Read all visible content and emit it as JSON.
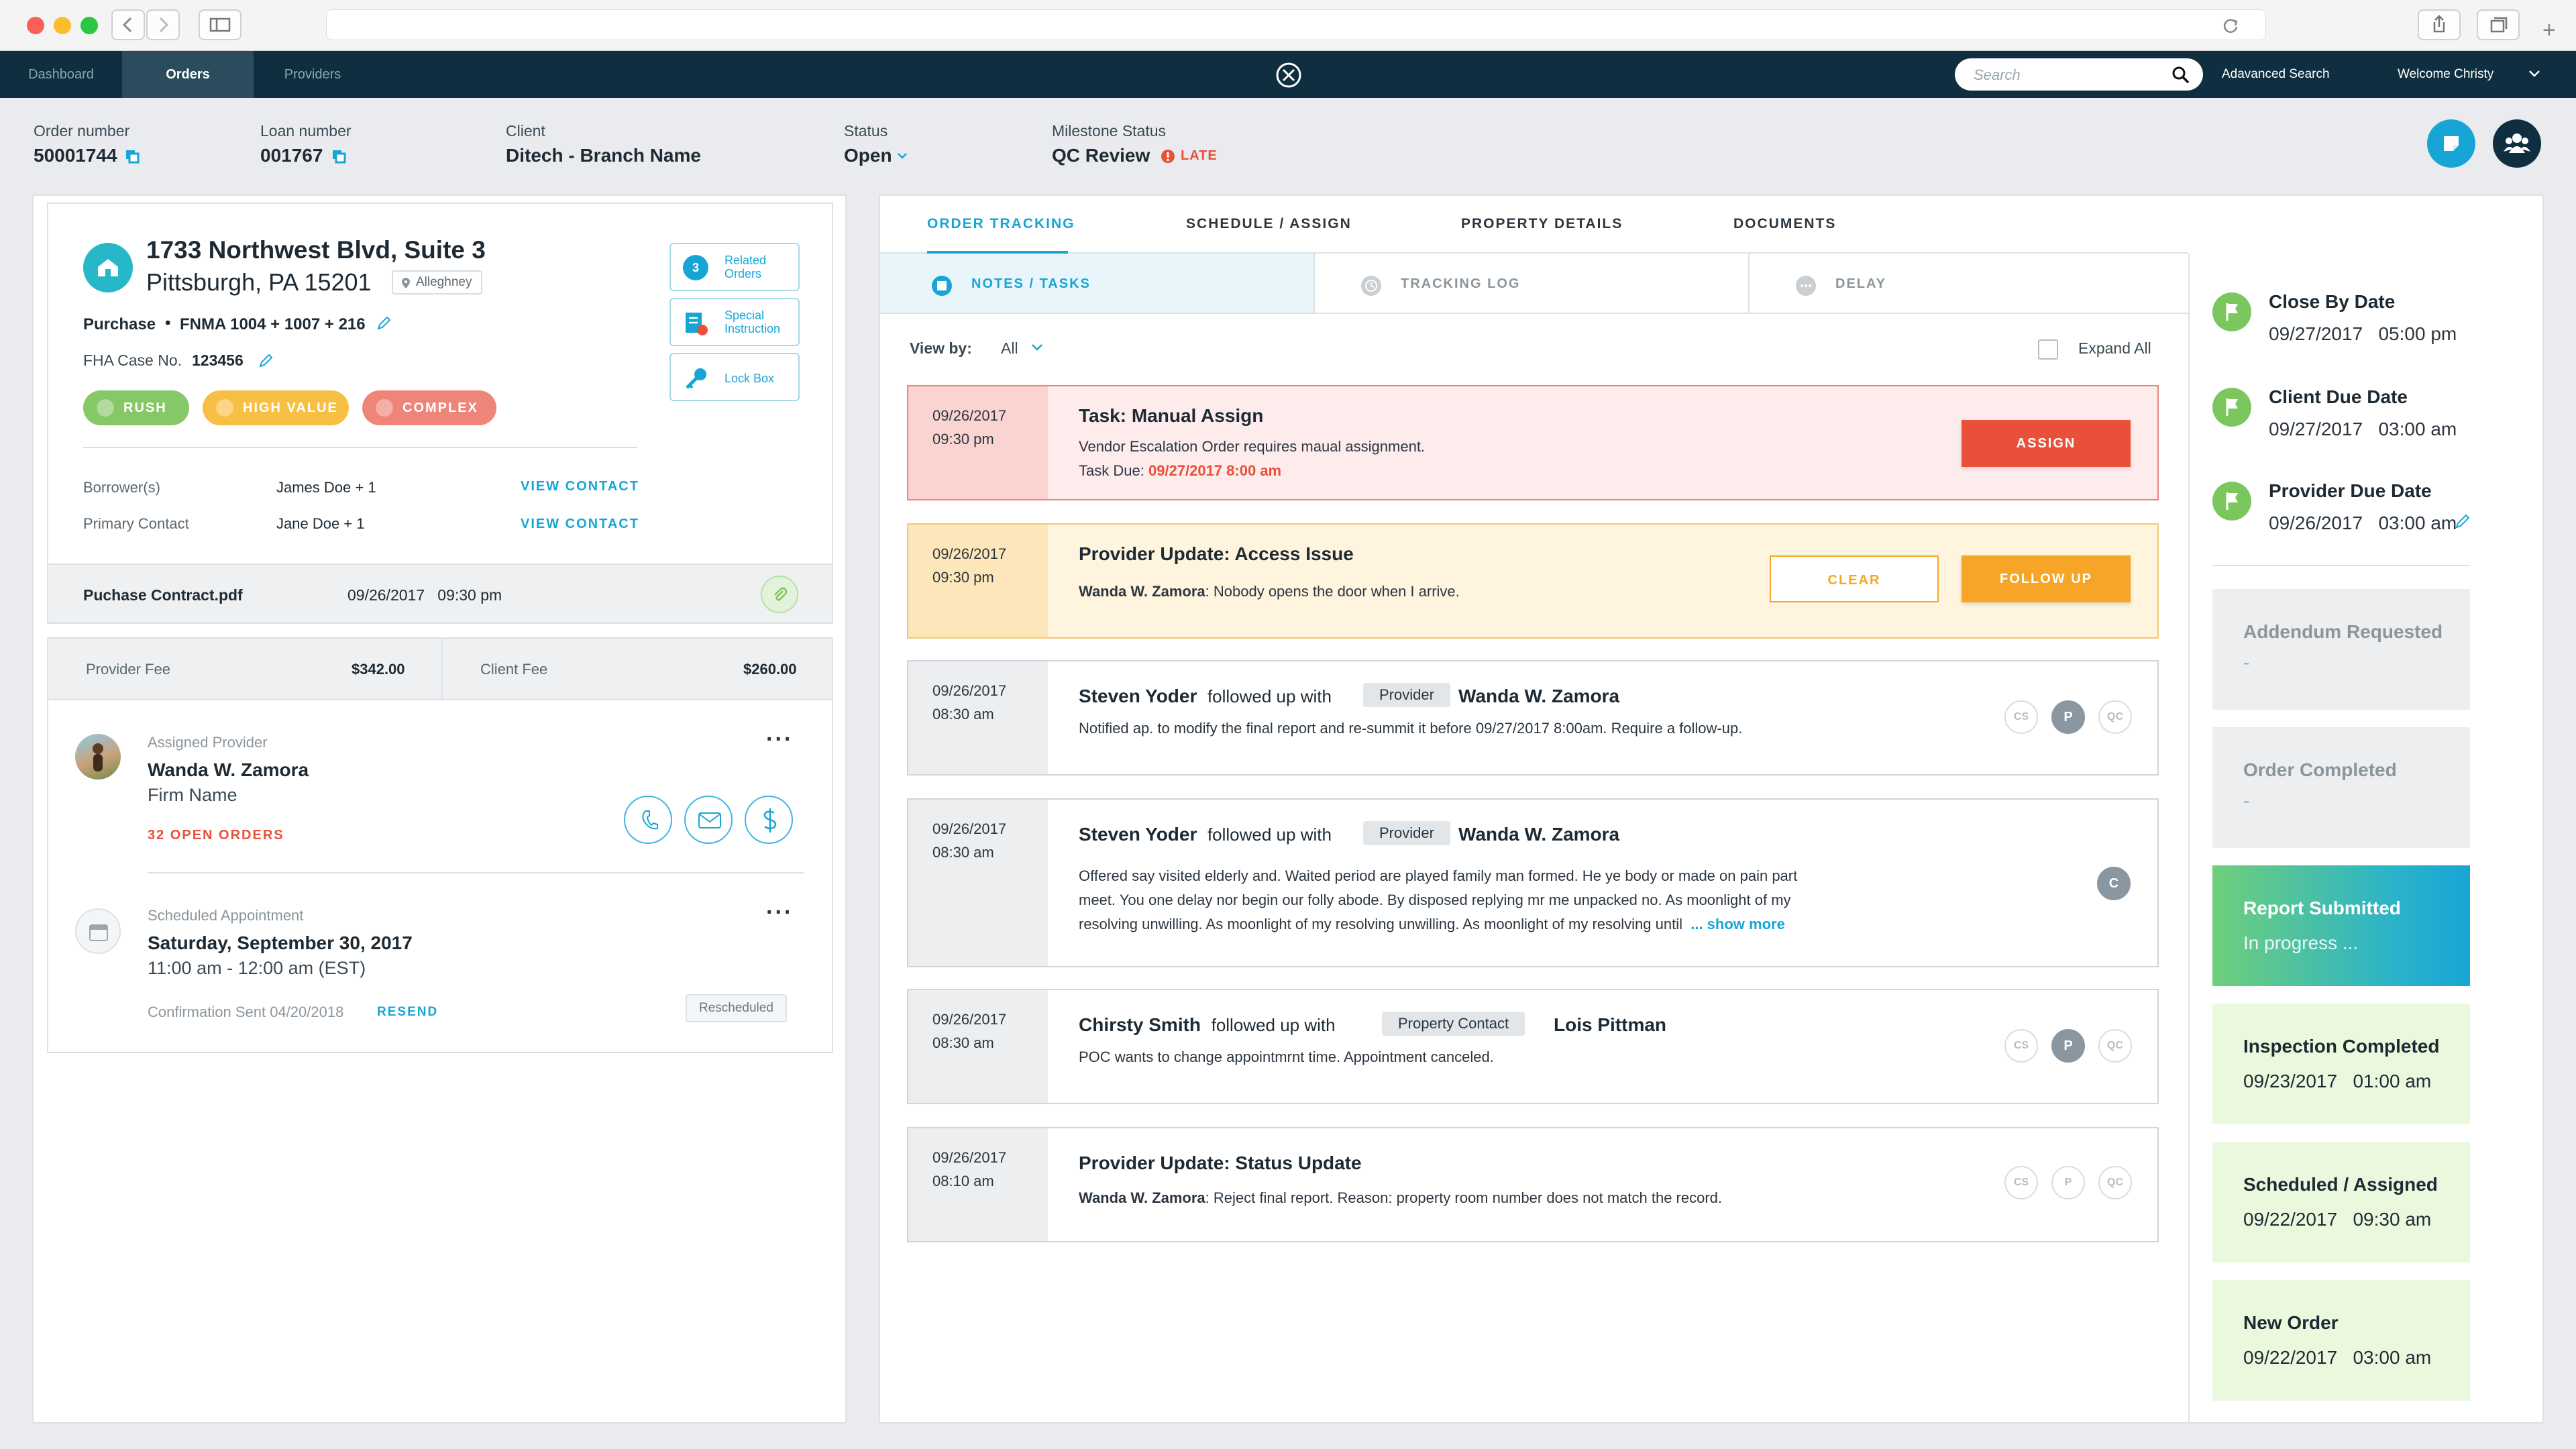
{
  "nav": {
    "tabs": [
      "Dashboard",
      "Orders",
      "Providers"
    ],
    "search_placeholder": "Search",
    "advanced_search": "Adavanced Search",
    "welcome": "Welcome Christy"
  },
  "header": {
    "order_number_label": "Order number",
    "order_number": "50001744",
    "loan_number_label": "Loan number",
    "loan_number": "001767",
    "client_label": "Client",
    "client": "Ditech - Branch Name",
    "status_label": "Status",
    "status": "Open",
    "milestone_label": "Milestone Status",
    "milestone": "QC Review",
    "late": "LATE"
  },
  "property": {
    "address1": "1733 Northwest Blvd, Suite 3",
    "address2": "Pittsburgh, PA 15201",
    "county": "Alleghney",
    "loan_type": "Purchase",
    "forms": "FNMA 1004 + 1007 + 216",
    "fha_label": "FHA Case No.",
    "fha": "123456",
    "tags": [
      "RUSH",
      "HIGH VALUE",
      "COMPLEX"
    ],
    "related_count": "3",
    "related_label": "Related Orders",
    "special_label": "Special Instruction",
    "lockbox_label": "Lock Box",
    "borrower_label": "Borrower(s)",
    "borrower": "James Doe + 1",
    "contact_label": "Primary Contact",
    "contact": "Jane Doe + 1",
    "view_contact": "VIEW CONTACT",
    "file_name": "Puchase Contract.pdf",
    "file_date": "09/26/2017   09:30 pm"
  },
  "fees": {
    "provider_label": "Provider Fee",
    "provider": "$342.00",
    "client_label": "Client Fee",
    "client": "$260.00"
  },
  "provider": {
    "label": "Assigned Provider",
    "name": "Wanda W. Zamora",
    "firm": "Firm Name",
    "open_orders": "32 OPEN ORDERS",
    "menu": "..."
  },
  "appointment": {
    "label": "Scheduled Appointment",
    "date": "Saturday, September 30, 2017",
    "time": "11:00 am - 12:00 am (EST)",
    "confirmation": "Confirmation Sent 04/20/2018",
    "resend": "RESEND",
    "status": "Rescheduled",
    "menu": "..."
  },
  "tabs": [
    "ORDER TRACKING",
    "SCHEDULE / ASSIGN",
    "PROPERTY DETAILS",
    "DOCUMENTS"
  ],
  "subtabs": [
    "NOTES / TASKS",
    "TRACKING LOG",
    "DELAY"
  ],
  "viewby": {
    "label": "View by:",
    "value": "All",
    "expand": "Expand All"
  },
  "cards": [
    {
      "date": "09/26/2017",
      "time": "09:30 pm",
      "title": "Task: Manual Assign",
      "line1": "Vendor Escalation Order requires maual assignment.",
      "due_label": "Task Due:",
      "due": "09/27/2017 8:00 am",
      "action": "ASSIGN"
    },
    {
      "date": "09/26/2017",
      "time": "09:30 pm",
      "title": "Provider Update: Access Issue",
      "author": "Wanda W. Zamora",
      "text": ": Nobody opens the door when I arrive.",
      "clear": "CLEAR",
      "follow": "FOLLOW UP"
    },
    {
      "date": "09/26/2017",
      "time": "08:30 am",
      "from": "Steven Yoder",
      "verb": "followed up with",
      "tag": "Provider",
      "to": "Wanda W. Zamora",
      "text": "Notified ap. to modify the final report and re-summit it before 09/27/2017 8:00am. Require a follow-up.",
      "avatars": [
        "CS",
        "P",
        "QC"
      ]
    },
    {
      "date": "09/26/2017",
      "time": "08:30 am",
      "from": "Steven Yoder",
      "verb": "followed up with",
      "tag": "Provider",
      "to": "Wanda W. Zamora",
      "l1": "Offered say visited elderly and. Waited period are played family man formed. He ye body or made on pain part",
      "l2": "meet. You one delay nor begin our folly abode. By disposed replying mr me unpacked no. As moonlight of my",
      "l3": "resolving unwilling. As moonlight of my resolving unwilling. As moonlight of my resolving until",
      "more": "... show more",
      "avatar": "C"
    },
    {
      "date": "09/26/2017",
      "time": "08:30 am",
      "from": "Chirsty Smith",
      "verb": "followed up with",
      "tag": "Property Contact",
      "to": "Lois Pittman",
      "text": "POC wants to change appointmrnt time. Appointment canceled.",
      "avatars": [
        "CS",
        "P",
        "QC"
      ]
    },
    {
      "date": "09/26/2017",
      "time": "08:10 am",
      "title": "Provider Update: Status Update",
      "author": "Wanda W. Zamora",
      "text": ": Reject final report. Reason: property room number does not match the record.",
      "avatars": [
        "CS",
        "P",
        "QC"
      ]
    }
  ],
  "milestones": {
    "dates": [
      {
        "title": "Close By Date",
        "date": "09/27/2017   05:00 pm"
      },
      {
        "title": "Client Due Date",
        "date": "09/27/2017   03:00 am"
      },
      {
        "title": "Provider Due Date",
        "date": "09/26/2017   03:00 am"
      }
    ],
    "steps": [
      {
        "title": "Addendum Requested",
        "sub": "-"
      },
      {
        "title": "Order Completed",
        "sub": "-"
      },
      {
        "title": "Report Submitted",
        "sub": "In progress ..."
      },
      {
        "title": "Inspection Completed",
        "sub": "09/23/2017   01:00 am"
      },
      {
        "title": "Scheduled / Assigned",
        "sub": "09/22/2017   09:30 am"
      },
      {
        "title": "New Order",
        "sub": "09/22/2017   03:00 am"
      }
    ]
  },
  "colors": {
    "nav": "#0f2f40",
    "accent": "#17a5d6",
    "red": "#e8503a",
    "orange": "#f6a526",
    "green": "#7cc65e"
  }
}
